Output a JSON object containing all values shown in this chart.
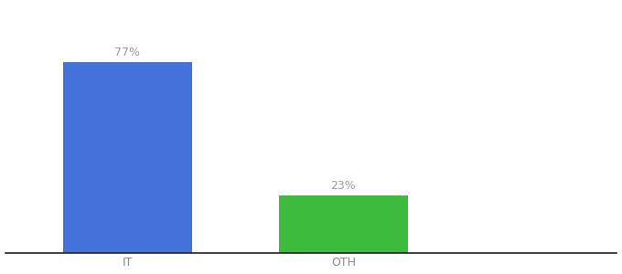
{
  "categories": [
    "IT",
    "OTH"
  ],
  "values": [
    77,
    23
  ],
  "bar_colors": [
    "#4472db",
    "#3dbb3d"
  ],
  "label_texts": [
    "77%",
    "23%"
  ],
  "label_color": "#999999",
  "label_fontsize": 9,
  "xlabel_fontsize": 9,
  "xlabel_color": "#888888",
  "background_color": "#ffffff",
  "ylim": [
    0,
    100
  ],
  "bar_width": 0.18,
  "axis_line_color": "#222222",
  "x_positions": [
    0.22,
    0.52
  ]
}
